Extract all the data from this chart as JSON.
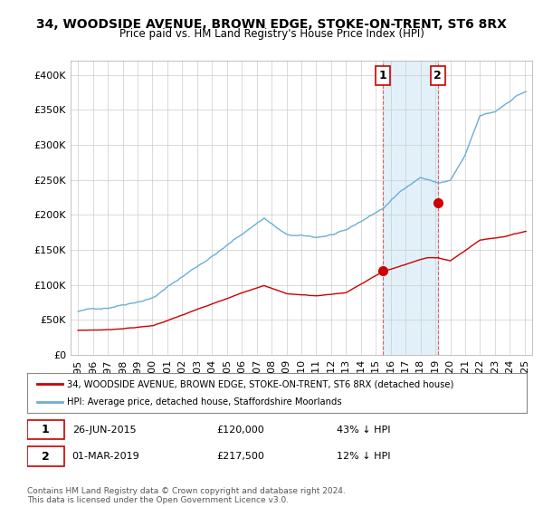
{
  "title": "34, WOODSIDE AVENUE, BROWN EDGE, STOKE-ON-TRENT, ST6 8RX",
  "subtitle": "Price paid vs. HM Land Registry's House Price Index (HPI)",
  "ylabel_ticks": [
    "£0",
    "£50K",
    "£100K",
    "£150K",
    "£200K",
    "£250K",
    "£300K",
    "£350K",
    "£400K"
  ],
  "ytick_values": [
    0,
    50000,
    100000,
    150000,
    200000,
    250000,
    300000,
    350000,
    400000
  ],
  "ylim": [
    0,
    420000
  ],
  "hpi_color": "#6baed6",
  "price_color": "#cc0000",
  "marker1_year": 2015.49,
  "marker1_price": 120000,
  "marker2_year": 2019.17,
  "marker2_price": 217500,
  "legend_property": "34, WOODSIDE AVENUE, BROWN EDGE, STOKE-ON-TRENT, ST6 8RX (detached house)",
  "legend_hpi": "HPI: Average price, detached house, Staffordshire Moorlands",
  "annotation1": "26-JUN-2015    £120,000    43% ↓ HPI",
  "annotation2": "01-MAR-2019    £217,500    12% ↓ HPI",
  "footer": "Contains HM Land Registry data © Crown copyright and database right 2024.\nThis data is licensed under the Open Government Licence v3.0.",
  "background_color": "#ffffff",
  "grid_color": "#cccccc"
}
